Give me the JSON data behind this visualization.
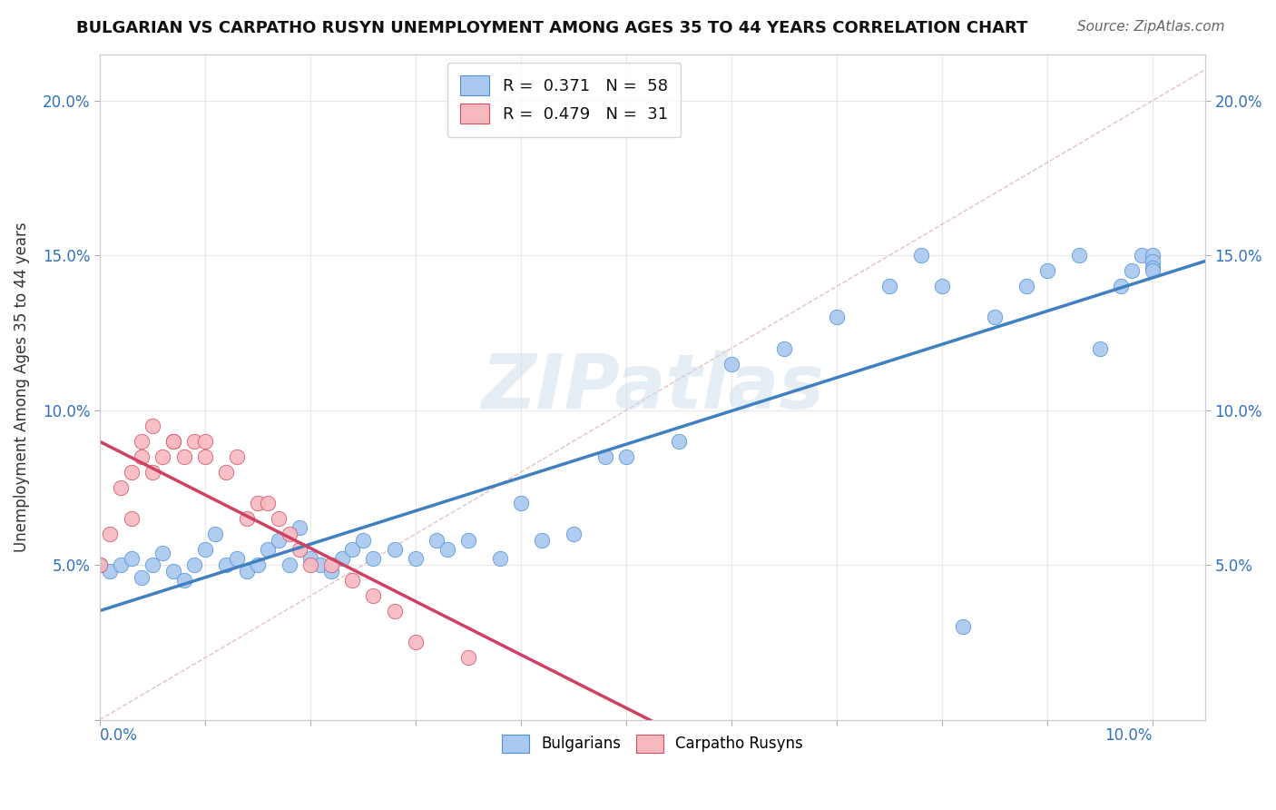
{
  "title": "BULGARIAN VS CARPATHO RUSYN UNEMPLOYMENT AMONG AGES 35 TO 44 YEARS CORRELATION CHART",
  "source": "Source: ZipAtlas.com",
  "ylabel": "Unemployment Among Ages 35 to 44 years",
  "legend_r_bulgarian": "0.371",
  "legend_n_bulgarian": "58",
  "legend_r_carpatho": "0.479",
  "legend_n_carpatho": "31",
  "bulgarian_color": "#a8c8f0",
  "bulgarian_edge": "#5090d0",
  "carpatho_color": "#f8b8c0",
  "carpatho_edge": "#d05060",
  "reg_bulgarian": "#4080c0",
  "reg_carpatho": "#d04060",
  "diagonal_color": "#e0b0b8",
  "watermark": "ZIPatlas",
  "watermark_color": "#ccdcec",
  "xlim": [
    0.0,
    0.105
  ],
  "ylim": [
    0.0,
    0.215
  ],
  "bulgarians_x": [
    0.0,
    0.001,
    0.002,
    0.003,
    0.004,
    0.005,
    0.006,
    0.007,
    0.008,
    0.009,
    0.01,
    0.011,
    0.012,
    0.013,
    0.014,
    0.015,
    0.016,
    0.017,
    0.018,
    0.019,
    0.02,
    0.021,
    0.022,
    0.023,
    0.024,
    0.025,
    0.026,
    0.028,
    0.03,
    0.032,
    0.033,
    0.035,
    0.038,
    0.04,
    0.042,
    0.045,
    0.048,
    0.05,
    0.055,
    0.06,
    0.065,
    0.07,
    0.075,
    0.078,
    0.08,
    0.082,
    0.085,
    0.088,
    0.09,
    0.093,
    0.095,
    0.097,
    0.098,
    0.099,
    0.1,
    0.1,
    0.1,
    0.1
  ],
  "bulgarians_y": [
    0.05,
    0.048,
    0.05,
    0.052,
    0.046,
    0.05,
    0.054,
    0.048,
    0.045,
    0.05,
    0.055,
    0.06,
    0.05,
    0.052,
    0.048,
    0.05,
    0.055,
    0.058,
    0.05,
    0.062,
    0.052,
    0.05,
    0.048,
    0.052,
    0.055,
    0.058,
    0.052,
    0.055,
    0.052,
    0.058,
    0.055,
    0.058,
    0.052,
    0.07,
    0.058,
    0.06,
    0.085,
    0.085,
    0.09,
    0.115,
    0.12,
    0.13,
    0.14,
    0.15,
    0.14,
    0.03,
    0.13,
    0.14,
    0.145,
    0.15,
    0.12,
    0.14,
    0.145,
    0.15,
    0.15,
    0.148,
    0.146,
    0.145
  ],
  "carpatho_x": [
    0.0,
    0.001,
    0.002,
    0.003,
    0.003,
    0.004,
    0.004,
    0.005,
    0.005,
    0.006,
    0.007,
    0.007,
    0.008,
    0.009,
    0.01,
    0.01,
    0.012,
    0.013,
    0.014,
    0.015,
    0.016,
    0.017,
    0.018,
    0.019,
    0.02,
    0.022,
    0.024,
    0.026,
    0.028,
    0.03,
    0.035
  ],
  "carpatho_y": [
    0.05,
    0.06,
    0.075,
    0.065,
    0.08,
    0.085,
    0.09,
    0.08,
    0.095,
    0.085,
    0.09,
    0.09,
    0.085,
    0.09,
    0.085,
    0.09,
    0.08,
    0.085,
    0.065,
    0.07,
    0.07,
    0.065,
    0.06,
    0.055,
    0.05,
    0.05,
    0.045,
    0.04,
    0.035,
    0.025,
    0.02
  ]
}
